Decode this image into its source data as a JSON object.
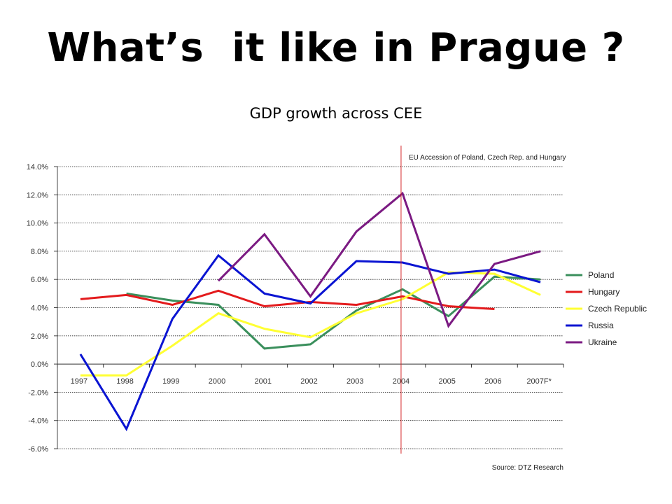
{
  "page_title": "What’s  it like in Prague ?",
  "chart_data": {
    "type": "line",
    "title": "GDP growth across CEE",
    "x": [
      "1997",
      "1998",
      "1999",
      "2000",
      "2001",
      "2002",
      "2003",
      "2004",
      "2005",
      "2006",
      "2007F*"
    ],
    "ylim": [
      -6.0,
      14.0
    ],
    "y_ticks": [
      "14.0%",
      "12.0%",
      "10.0%",
      "8.0%",
      "6.0%",
      "4.0%",
      "2.0%",
      "0.0%",
      "-2.0%",
      "-4.0%",
      "-6.0%"
    ],
    "grid": true,
    "legend": "right",
    "series": [
      {
        "name": "Poland",
        "color": "#3a8f5c",
        "values": [
          null,
          5.0,
          4.5,
          4.2,
          1.1,
          1.4,
          3.8,
          5.3,
          3.4,
          6.2,
          6.0
        ]
      },
      {
        "name": "Hungary",
        "color": "#e31a1c",
        "values": [
          4.6,
          4.9,
          4.2,
          5.2,
          4.1,
          4.4,
          4.2,
          4.8,
          4.1,
          3.9,
          null
        ]
      },
      {
        "name": "Czech Republic",
        "color": "#ffff33",
        "values": [
          -0.8,
          -0.8,
          1.3,
          3.6,
          2.5,
          1.9,
          3.6,
          4.6,
          6.5,
          6.4,
          4.9
        ]
      },
      {
        "name": "Russia",
        "color": "#0a14d2",
        "values": [
          0.7,
          -4.6,
          3.2,
          7.7,
          5.0,
          4.3,
          7.3,
          7.2,
          6.4,
          6.7,
          5.8
        ]
      },
      {
        "name": "Ukraine",
        "color": "#7b1a82",
        "values": [
          null,
          null,
          null,
          5.9,
          9.2,
          4.8,
          9.4,
          12.1,
          2.7,
          7.1,
          8.0
        ]
      }
    ],
    "annotation": {
      "text": "EU Accession of Poland, Czech Rep. and Hungary",
      "x": "2004",
      "color": "#d62728"
    },
    "source": "Source: DTZ Research"
  }
}
